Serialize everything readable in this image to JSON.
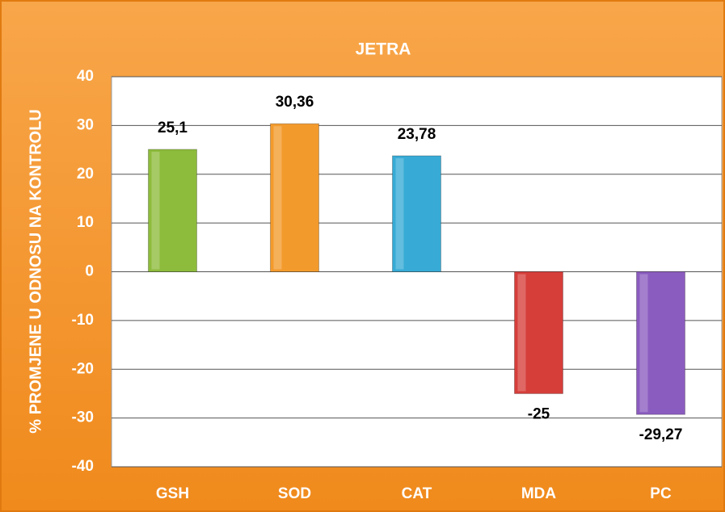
{
  "chart_data": {
    "type": "bar",
    "title": "JETRA",
    "y_axis_label": "% PROMJENE U ODNOSU NA KONTROLU",
    "categories": [
      "GSH",
      "SOD",
      "CAT",
      "MDA",
      "PC"
    ],
    "values": [
      25.1,
      30.36,
      23.78,
      -25,
      -29.27
    ],
    "value_labels": [
      "25,1",
      "30,36",
      "23,78",
      "-25",
      "-29,27"
    ],
    "colors": [
      "#8dbb3c",
      "#f39a2c",
      "#37abd6",
      "#d63e3a",
      "#8b5cbf"
    ],
    "ylim": [
      -40,
      40
    ],
    "yticks": [
      -40,
      -30,
      -20,
      -10,
      0,
      10,
      20,
      30,
      40
    ],
    "grid": true
  }
}
